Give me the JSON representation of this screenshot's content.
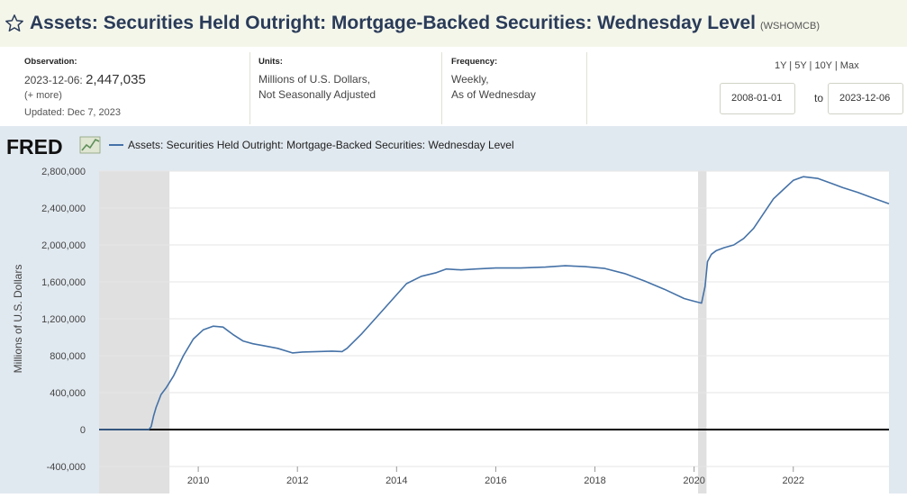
{
  "header": {
    "title": "Assets: Securities Held Outright: Mortgage-Backed Securities: Wednesday Level",
    "series_id": "(WSHOMCB)"
  },
  "observation": {
    "label": "Observation:",
    "date": "2023-12-06:",
    "value": "2,447,035",
    "more": "(+ more)",
    "updated": "Updated: Dec 7, 2023"
  },
  "units": {
    "label": "Units:",
    "line1": "Millions of U.S. Dollars,",
    "line2": "Not Seasonally Adjusted"
  },
  "frequency": {
    "label": "Frequency:",
    "line1": "Weekly,",
    "line2": "As of Wednesday"
  },
  "range": {
    "links": "1Y | 5Y | 10Y | Max",
    "start": "2008-01-01",
    "to": "to",
    "end": "2023-12-06"
  },
  "chart_data": {
    "type": "line",
    "logo": "FRED",
    "legend": "Assets: Securities Held Outright: Mortgage-Backed Securities: Wednesday Level",
    "ylabel": "Millions of U.S. Dollars",
    "xlabel": "",
    "xlim": [
      2008.0,
      2023.93
    ],
    "ylim": [
      -400000,
      2800000
    ],
    "yticks": [
      -400000,
      0,
      400000,
      800000,
      1200000,
      1600000,
      2000000,
      2400000,
      2800000
    ],
    "ytick_labels": [
      "-400,000",
      "0",
      "400,000",
      "800,000",
      "1,200,000",
      "1,600,000",
      "2,000,000",
      "2,400,000",
      "2,800,000"
    ],
    "xticks": [
      2010,
      2012,
      2014,
      2016,
      2018,
      2020,
      2022
    ],
    "xtick_labels": [
      "2010",
      "2012",
      "2014",
      "2016",
      "2018",
      "2020",
      "2022"
    ],
    "recessions": [
      [
        2008.0,
        2009.42
      ],
      [
        2020.08,
        2020.25
      ]
    ],
    "series": [
      {
        "name": "WSHOMCB",
        "color": "#4572a7",
        "x": [
          2008.0,
          2008.5,
          2009.0,
          2009.05,
          2009.1,
          2009.15,
          2009.25,
          2009.35,
          2009.5,
          2009.7,
          2009.9,
          2010.1,
          2010.3,
          2010.5,
          2010.7,
          2010.9,
          2011.1,
          2011.3,
          2011.6,
          2011.9,
          2012.1,
          2012.4,
          2012.7,
          2012.9,
          2013.0,
          2013.3,
          2013.6,
          2013.9,
          2014.2,
          2014.5,
          2014.8,
          2015.0,
          2015.3,
          2015.6,
          2016.0,
          2016.5,
          2017.0,
          2017.4,
          2017.8,
          2018.2,
          2018.6,
          2019.0,
          2019.4,
          2019.8,
          2020.0,
          2020.15,
          2020.22,
          2020.27,
          2020.35,
          2020.45,
          2020.6,
          2020.8,
          2021.0,
          2021.2,
          2021.4,
          2021.6,
          2021.8,
          2022.0,
          2022.2,
          2022.5,
          2022.8,
          2023.0,
          2023.3,
          2023.6,
          2023.93
        ],
        "y": [
          0,
          0,
          0,
          30000,
          150000,
          240000,
          380000,
          450000,
          580000,
          800000,
          980000,
          1080000,
          1120000,
          1110000,
          1030000,
          960000,
          930000,
          910000,
          880000,
          830000,
          840000,
          845000,
          850000,
          845000,
          880000,
          1040000,
          1220000,
          1400000,
          1580000,
          1660000,
          1700000,
          1740000,
          1730000,
          1740000,
          1750000,
          1750000,
          1760000,
          1775000,
          1765000,
          1745000,
          1690000,
          1610000,
          1520000,
          1420000,
          1390000,
          1370000,
          1550000,
          1820000,
          1900000,
          1940000,
          1970000,
          2000000,
          2070000,
          2180000,
          2340000,
          2500000,
          2600000,
          2700000,
          2740000,
          2720000,
          2660000,
          2620000,
          2570000,
          2510000,
          2447035
        ]
      }
    ]
  }
}
